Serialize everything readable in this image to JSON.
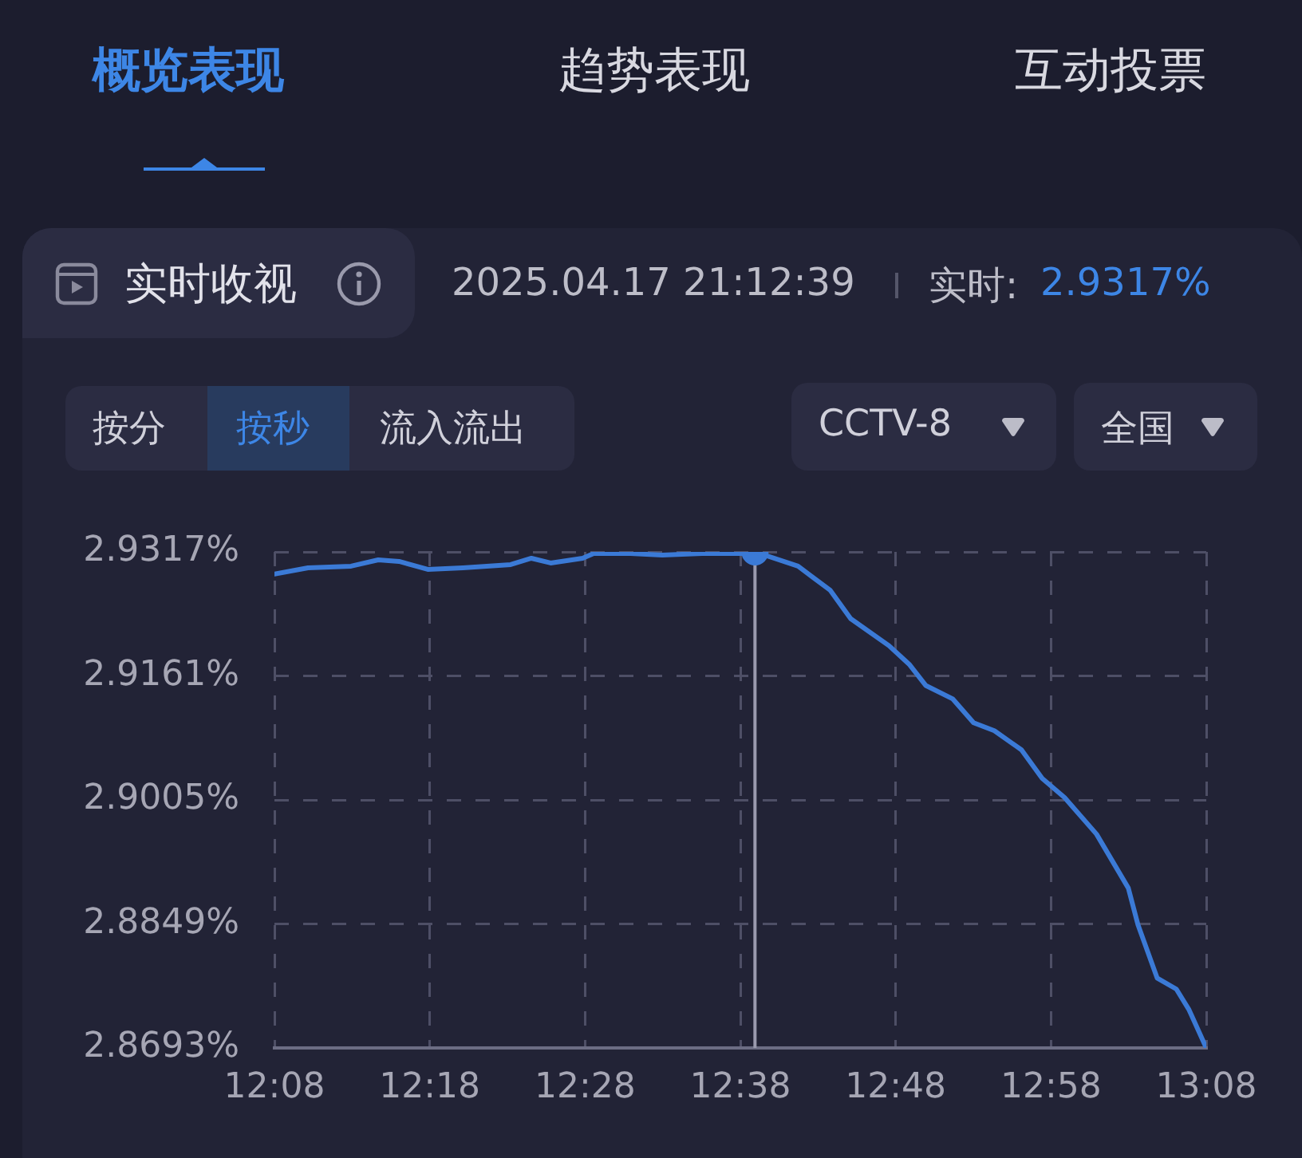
{
  "chart_data": {
    "type": "line",
    "title": "实时收视",
    "subtitle": "2025.04.17 21:12:39",
    "annotations": [
      "概览表现",
      "趋势表现",
      "互动投票",
      "实时:",
      "2.9317%",
      "按分",
      "按秒",
      "流入流出",
      "CCTV-8",
      "全国"
    ],
    "series": [
      {
        "color": "#3b7ad6",
        "x": [
          12.1333,
          12.1693,
          12.2155,
          12.2447,
          12.267,
          12.2978,
          12.3355,
          12.3868,
          12.4091,
          12.4297,
          12.464,
          12.4759,
          12.5153,
          12.5495,
          12.5924,
          12.6352,
          12.649,
          12.6952,
          12.7295,
          12.7517,
          12.7928,
          12.815,
          12.8322,
          12.8613,
          12.8836,
          12.9059,
          12.935,
          12.9572,
          12.9812,
          13.0155,
          13.0497,
          13.06,
          13.0806,
          13.1012,
          13.1148,
          13.1333
        ],
        "values": [
          2.9289,
          2.9297,
          2.9299,
          2.9307,
          2.9305,
          2.9295,
          2.9297,
          2.9301,
          2.9309,
          2.9303,
          2.9309,
          2.9315,
          2.9315,
          2.9313,
          2.9315,
          2.9315,
          2.9317,
          2.9299,
          2.9269,
          2.9233,
          2.9199,
          2.9175,
          2.9149,
          2.9132,
          2.9102,
          2.9092,
          2.9068,
          2.9032,
          2.9008,
          2.8962,
          2.8894,
          2.8848,
          2.8781,
          2.8767,
          2.8741,
          2.8693
        ]
      },
      {
        "type": "scatter",
        "color": "#3b7ad6",
        "marker": "circle",
        "x": [
          12.649
        ],
        "values": [
          2.9317
        ]
      }
    ],
    "xlim": [
      12.1333,
      13.1333
    ],
    "xticks": [
      {
        "value": 12.1333,
        "label": "12:08"
      },
      {
        "value": 12.3,
        "label": "12:18"
      },
      {
        "value": 12.4667,
        "label": "12:28"
      },
      {
        "value": 12.6333,
        "label": "12:38"
      },
      {
        "value": 12.8,
        "label": "12:48"
      },
      {
        "value": 12.9667,
        "label": "12:58"
      },
      {
        "value": 13.1333,
        "label": "13:08"
      }
    ],
    "ylim": [
      2.8693,
      2.9317
    ],
    "yticks": [
      {
        "value": 2.8693,
        "label": "2.8693%"
      },
      {
        "value": 2.8849,
        "label": "2.8849%"
      },
      {
        "value": 2.9005,
        "label": "2.9005%"
      },
      {
        "value": 2.9161,
        "label": "2.9161%"
      },
      {
        "value": 2.9317,
        "label": "2.9317%"
      }
    ],
    "ref_lines": [
      {
        "axis": "x",
        "value": 12.649,
        "color": "#9a9aae"
      }
    ],
    "grid": true,
    "legend": false
  }
}
